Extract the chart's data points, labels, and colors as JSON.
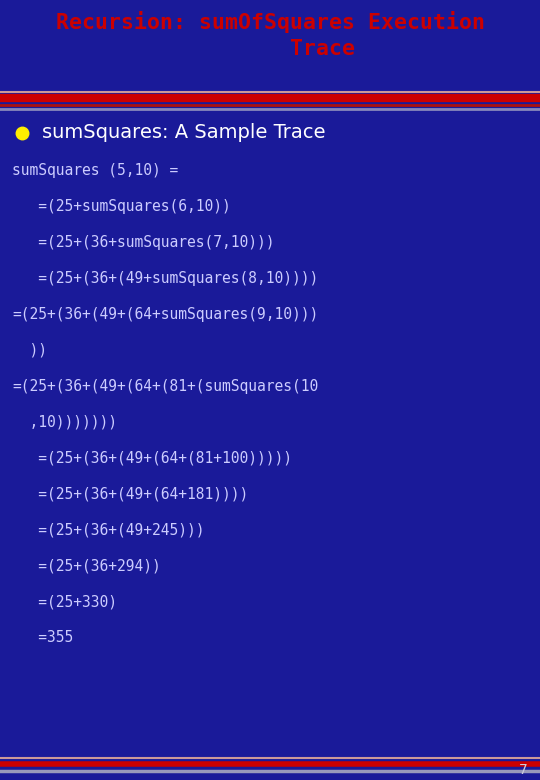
{
  "bg_color": "#1a1a99",
  "title_bold_text": "Recursion",
  "title_colon": ":",
  "title_mono_text": " sumOfSquares Execution\n        Trace",
  "title_color_bold": "#cc0000",
  "title_color_mono": "#cc0000",
  "separator_red_thick": "#cc0000",
  "separator_red_thin": "#aa2222",
  "separator_blue": "#7777aa",
  "separator_pink": "#cc8888",
  "bullet_color": "#ffee00",
  "bullet_text": "sumSquares: A Sample Trace",
  "bullet_text_color": "#ffffff",
  "code_color": "#ccccff",
  "code_lines": [
    "sumSquares (5,10) =",
    "   =(25+sumSquares(6,10))",
    "   =(25+(36+sumSquares(7,10)))",
    "   =(25+(36+(49+sumSquares(8,10))))",
    "=(25+(36+(49+(64+sumSquares(9,10)))",
    "  ))",
    "=(25+(36+(49+(64+(81+(sumSquares(10",
    "  ,10)))))))",
    "   =(25+(36+(49+(64+(81+100)))))",
    "   =(25+(36+(49+(64+181))))",
    "   =(25+(36+(49+245)))",
    "   =(25+(36+294))",
    "   =(25+330)",
    "   =355"
  ],
  "page_number": "7",
  "page_color": "#ccccdd"
}
